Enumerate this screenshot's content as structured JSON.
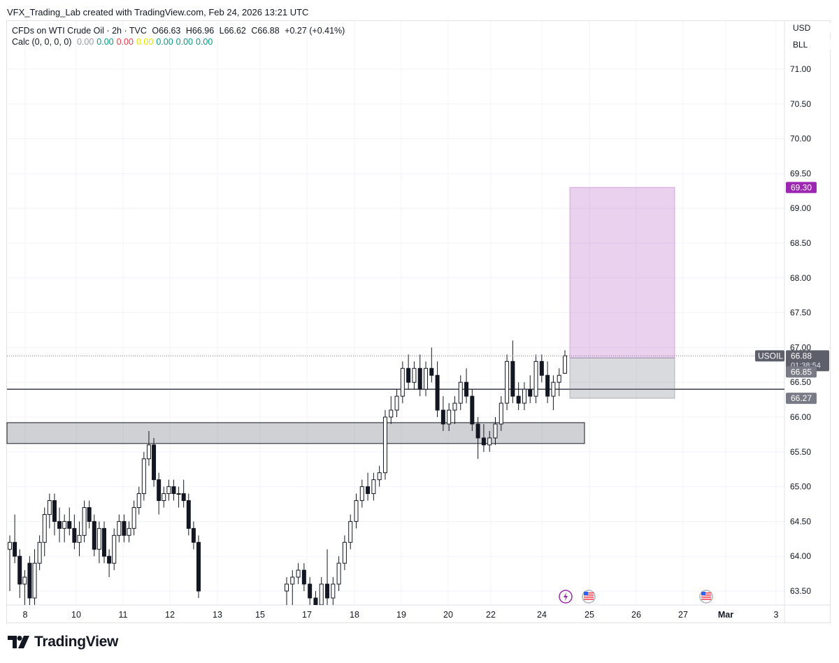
{
  "credit": "VFX_Trading_Lab created with TradingView.com, Feb 24, 2026 13:21 UTC",
  "legend": {
    "symbol": "CFDs on WTI Crude Oil · 2h · TVC",
    "open": "O66.63",
    "high": "H66.96",
    "low": "L66.62",
    "close": "C66.88",
    "change": "+0.27 (+0.41%)",
    "calc_label": "Calc (0, 0, 0, 0)",
    "calc_values": [
      {
        "text": "0.00",
        "color": "#9598a1"
      },
      {
        "text": "0.00",
        "color": "#089981"
      },
      {
        "text": "0.00",
        "color": "#f23645"
      },
      {
        "text": "0.00",
        "color": "#e7e200"
      },
      {
        "text": "0.00",
        "color": "#089981"
      },
      {
        "text": "0.00",
        "color": "#089981"
      },
      {
        "text": "0.00",
        "color": "#089981"
      }
    ]
  },
  "axis_currency": "USD",
  "axis_unit": "BLL",
  "brand": "TradingView",
  "chart_data": {
    "type": "candlestick",
    "ylim": [
      63.25,
      71.3
    ],
    "y_ticks": [
      "63.50",
      "64.00",
      "64.50",
      "65.00",
      "65.50",
      "66.00",
      "66.50",
      "67.00",
      "67.50",
      "68.00",
      "68.50",
      "69.00",
      "69.50",
      "70.00",
      "70.50",
      "71.00"
    ],
    "x_ticks": [
      "8",
      "10",
      "11",
      "12",
      "13",
      "15",
      "17",
      "18",
      "19",
      "20",
      "22",
      "24",
      "25",
      "26",
      "27",
      "Mar",
      "3"
    ],
    "price_labels": {
      "target": {
        "text": "69.30",
        "color": "#9c27b0"
      },
      "last_symbol": "USOIL",
      "last_price": "66.88",
      "countdown": "01:38:54",
      "entry": "66.85",
      "stop": "66.27"
    },
    "horizontal_line": 66.4,
    "zone": {
      "top": 65.92,
      "bottom": 65.62
    },
    "position": {
      "target": 69.3,
      "entry": 66.85,
      "stop": 66.27
    },
    "candles": [
      [
        64.1,
        64.3,
        63.5,
        64.2
      ],
      [
        64.2,
        64.6,
        63.9,
        64.0
      ],
      [
        64.0,
        64.1,
        63.4,
        63.6
      ],
      [
        63.6,
        63.8,
        63.3,
        63.7
      ],
      [
        63.9,
        64.0,
        63.2,
        63.4
      ],
      [
        63.4,
        64.1,
        63.3,
        63.9
      ],
      [
        63.9,
        64.3,
        63.8,
        64.2
      ],
      [
        64.2,
        64.7,
        64.0,
        64.6
      ],
      [
        64.6,
        64.9,
        64.4,
        64.8
      ],
      [
        64.8,
        64.9,
        64.3,
        64.5
      ],
      [
        64.5,
        64.7,
        64.2,
        64.4
      ],
      [
        64.4,
        64.6,
        64.2,
        64.5
      ],
      [
        64.5,
        64.7,
        64.3,
        64.4
      ],
      [
        64.4,
        64.6,
        64.1,
        64.2
      ],
      [
        64.2,
        64.5,
        64.0,
        64.3
      ],
      [
        64.3,
        64.8,
        64.2,
        64.7
      ],
      [
        64.7,
        64.8,
        64.4,
        64.5
      ],
      [
        64.5,
        64.6,
        64.0,
        64.1
      ],
      [
        64.1,
        64.5,
        63.9,
        64.4
      ],
      [
        64.4,
        64.5,
        63.9,
        64.0
      ],
      [
        64.0,
        64.1,
        63.7,
        63.9
      ],
      [
        63.9,
        64.4,
        63.8,
        64.3
      ],
      [
        64.3,
        64.6,
        64.2,
        64.5
      ],
      [
        64.5,
        64.6,
        64.2,
        64.3
      ],
      [
        64.3,
        64.5,
        64.2,
        64.4
      ],
      [
        64.4,
        64.8,
        64.3,
        64.7
      ],
      [
        64.7,
        65.0,
        64.6,
        64.9
      ],
      [
        64.9,
        65.5,
        64.8,
        65.4
      ],
      [
        65.4,
        65.8,
        65.3,
        65.6
      ],
      [
        65.6,
        65.7,
        65.0,
        65.1
      ],
      [
        65.1,
        65.2,
        64.6,
        64.8
      ],
      [
        64.8,
        65.0,
        64.7,
        64.9
      ],
      [
        64.9,
        65.1,
        64.8,
        65.0
      ],
      [
        65.0,
        65.1,
        64.8,
        64.9
      ],
      [
        64.9,
        65.0,
        64.7,
        64.9
      ],
      [
        64.9,
        65.1,
        64.7,
        64.8
      ],
      [
        64.8,
        64.9,
        64.3,
        64.4
      ],
      [
        64.4,
        64.5,
        64.1,
        64.2
      ],
      [
        64.2,
        64.3,
        63.4,
        63.5
      ],
      [
        63.5,
        63.7,
        63.2,
        63.6
      ],
      [
        63.6,
        63.8,
        63.3,
        63.7
      ],
      [
        63.7,
        63.9,
        63.6,
        63.8
      ],
      [
        63.8,
        63.9,
        63.5,
        63.6
      ],
      [
        63.6,
        63.7,
        63.3,
        63.4
      ],
      [
        63.4,
        63.5,
        63.2,
        63.3
      ],
      [
        63.3,
        63.7,
        63.2,
        63.6
      ],
      [
        63.6,
        64.1,
        63.3,
        63.4
      ],
      [
        63.4,
        63.7,
        63.3,
        63.6
      ],
      [
        63.6,
        64.0,
        63.5,
        63.9
      ],
      [
        63.9,
        64.3,
        63.8,
        64.2
      ],
      [
        64.2,
        64.6,
        64.1,
        64.5
      ],
      [
        64.5,
        64.9,
        64.4,
        64.8
      ],
      [
        64.8,
        65.1,
        64.7,
        65.0
      ],
      [
        65.0,
        65.2,
        64.8,
        64.9
      ],
      [
        64.9,
        65.2,
        64.8,
        65.1
      ],
      [
        65.1,
        65.3,
        65.0,
        65.2
      ],
      [
        65.2,
        66.1,
        65.1,
        66.0
      ],
      [
        66.0,
        66.3,
        65.9,
        66.1
      ],
      [
        66.1,
        66.4,
        66.0,
        66.3
      ],
      [
        66.3,
        66.8,
        66.2,
        66.7
      ],
      [
        66.7,
        66.9,
        66.4,
        66.5
      ],
      [
        66.5,
        66.8,
        66.4,
        66.7
      ],
      [
        66.7,
        66.9,
        66.3,
        66.4
      ],
      [
        66.4,
        66.8,
        66.3,
        66.7
      ],
      [
        66.7,
        67.0,
        66.5,
        66.6
      ],
      [
        66.6,
        66.8,
        66.0,
        66.1
      ],
      [
        66.1,
        66.3,
        65.8,
        65.9
      ],
      [
        65.9,
        66.2,
        65.8,
        66.1
      ],
      [
        66.1,
        66.3,
        65.9,
        66.2
      ],
      [
        66.2,
        66.6,
        66.1,
        66.5
      ],
      [
        66.5,
        66.7,
        66.2,
        66.3
      ],
      [
        66.3,
        66.4,
        65.8,
        65.9
      ],
      [
        65.9,
        66.0,
        65.4,
        65.7
      ],
      [
        65.7,
        65.9,
        65.5,
        65.6
      ],
      [
        65.6,
        65.8,
        65.5,
        65.7
      ],
      [
        65.7,
        66.0,
        65.6,
        65.9
      ],
      [
        65.9,
        66.3,
        65.8,
        66.2
      ],
      [
        66.2,
        66.9,
        66.1,
        66.8
      ],
      [
        66.8,
        67.1,
        66.2,
        66.3
      ],
      [
        66.3,
        66.5,
        66.1,
        66.2
      ],
      [
        66.2,
        66.5,
        66.1,
        66.4
      ],
      [
        66.4,
        66.6,
        66.2,
        66.3
      ],
      [
        66.3,
        66.9,
        66.2,
        66.8
      ],
      [
        66.8,
        66.9,
        66.5,
        66.6
      ],
      [
        66.6,
        66.8,
        66.2,
        66.3
      ],
      [
        66.3,
        66.6,
        66.1,
        66.5
      ],
      [
        66.5,
        66.7,
        66.3,
        66.6
      ],
      [
        66.63,
        66.96,
        66.62,
        66.88
      ]
    ]
  }
}
